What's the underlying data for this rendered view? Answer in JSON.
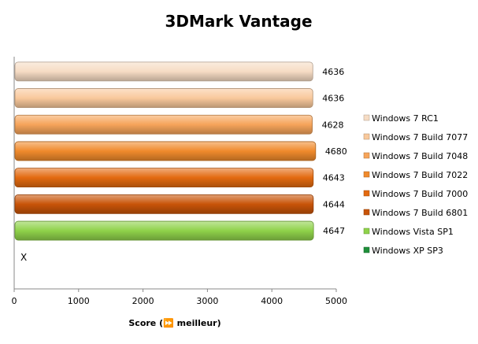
{
  "chart_data": {
    "type": "bar",
    "orientation": "horizontal",
    "title": "3DMark Vantage",
    "xlabel": "Score (⏩ meilleur)",
    "ylabel": "",
    "xlim": [
      0,
      5000
    ],
    "xticks": [
      0,
      1000,
      2000,
      3000,
      4000,
      5000
    ],
    "grid": false,
    "legend_position": "right",
    "series": [
      {
        "name": "Windows 7 RC1",
        "value": 4636,
        "label": "4636",
        "color": "#f6dcc4"
      },
      {
        "name": "Windows 7 Build 7077",
        "value": 4636,
        "label": "4636",
        "color": "#f9c99c"
      },
      {
        "name": "Windows 7 Build 7048",
        "value": 4628,
        "label": "4628",
        "color": "#f6a45a"
      },
      {
        "name": "Windows 7 Build 7022",
        "value": 4680,
        "label": "4680",
        "color": "#f08a2c"
      },
      {
        "name": "Windows 7 Build 7000",
        "value": 4643,
        "label": "4643",
        "color": "#e36a10"
      },
      {
        "name": "Windows 7 Build 6801",
        "value": 4644,
        "label": "4644",
        "color": "#c85408"
      },
      {
        "name": "Windows Vista SP1",
        "value": 4647,
        "label": "4647",
        "color": "#8fd24a"
      },
      {
        "name": "Windows XP SP3",
        "value": null,
        "label": "X",
        "color": "#1f8f3a"
      }
    ]
  }
}
